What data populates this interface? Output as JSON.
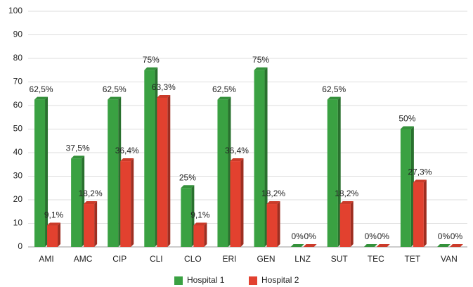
{
  "chart_data": {
    "type": "bar",
    "categories": [
      "AMI",
      "AMC",
      "CIP",
      "CLI",
      "CLO",
      "ERI",
      "GEN",
      "LNZ",
      "SUT",
      "TEC",
      "TET",
      "VAN"
    ],
    "series": [
      {
        "name": "Hospital 1",
        "color": "#3aa142",
        "values": [
          62.5,
          37.5,
          62.5,
          75,
          25,
          62.5,
          75,
          0,
          62.5,
          0,
          50,
          0
        ],
        "value_labels": [
          "62,5%",
          "37,5%",
          "62,5%",
          "75%",
          "25%",
          "62,5%",
          "75%",
          "0%",
          "62,5%",
          "0%",
          "50%",
          "0%"
        ]
      },
      {
        "name": "Hospital 2",
        "color": "#e2412f",
        "values": [
          9.1,
          18.2,
          36.4,
          63.3,
          9.1,
          36.4,
          18.2,
          0,
          18.2,
          0,
          27.3,
          0
        ],
        "value_labels": [
          "9,1%",
          "18,2%",
          "36,4%",
          "63,3%",
          "9,1%",
          "36,4%",
          "18,2%",
          "0%",
          "18,2%",
          "0%",
          "27,3%",
          "0%"
        ]
      }
    ],
    "ylim": [
      0,
      100
    ],
    "yticks": [
      0,
      10,
      20,
      30,
      40,
      50,
      60,
      70,
      80,
      90,
      100
    ],
    "grid": true,
    "legend": "bottom"
  }
}
